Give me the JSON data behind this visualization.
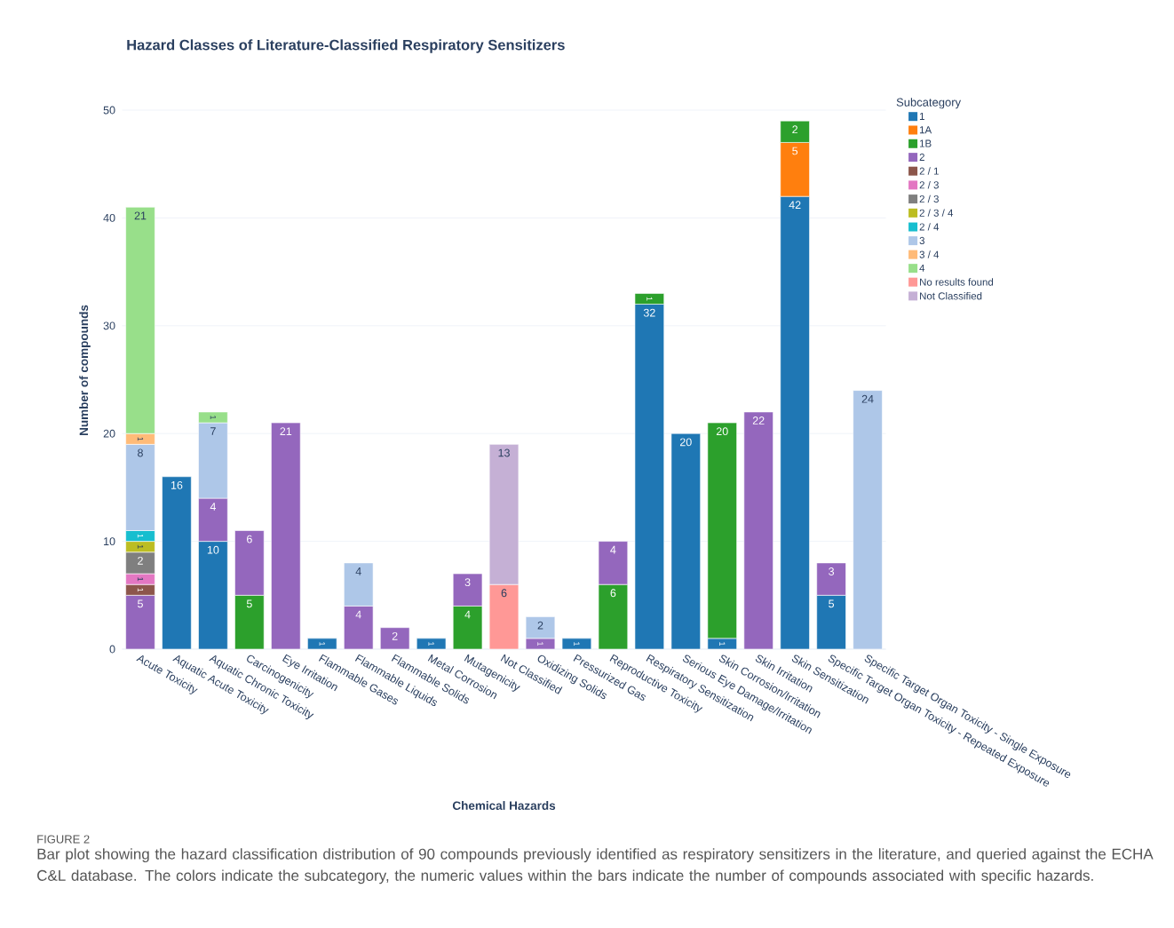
{
  "chart_data": {
    "type": "bar",
    "title": "Hazard Classes of Literature-Classified Respiratory Sensitizers",
    "xlabel": "Chemical Hazards",
    "ylabel": "Number of compounds",
    "legend_title": "Subcategory",
    "categories": [
      "Acute Toxicity",
      "Aquatic Acute Toxicity",
      "Aquatic Chronic Toxicity",
      "Carcinogenicity",
      "Eye Irritation",
      "Flammable Gases",
      "Flammable Liquids",
      "Flammable Solids",
      "Metal Corrosion",
      "Mutagenicity",
      "Not Classified",
      "Oxidizing Solids",
      "Pressurized Gas",
      "Reproductive Toxicity",
      "Respiratory Sensitization",
      "Serious Eye Damage/Irritation",
      "Skin Corrosion/Irritation",
      "Skin Irritation",
      "Skin Sensitization",
      "Specific Target Organ Toxicity - Repeated Exposure",
      "Specific Target Organ Toxicity - Single Exposure"
    ],
    "series": [
      {
        "name": "1",
        "color": "#1f77b4",
        "values": [
          null,
          16,
          10,
          null,
          null,
          1,
          null,
          null,
          1,
          null,
          null,
          null,
          1,
          null,
          32,
          20,
          1,
          null,
          42,
          5,
          null
        ]
      },
      {
        "name": "1A",
        "color": "#ff7f0e",
        "values": [
          null,
          null,
          null,
          null,
          null,
          null,
          null,
          null,
          null,
          null,
          null,
          null,
          null,
          null,
          null,
          null,
          null,
          null,
          5,
          null,
          null
        ]
      },
      {
        "name": "1B",
        "color": "#2ca02c",
        "values": [
          null,
          null,
          null,
          5,
          null,
          null,
          null,
          null,
          null,
          4,
          null,
          null,
          null,
          6,
          1,
          null,
          20,
          null,
          2,
          null,
          null
        ]
      },
      {
        "name": "2",
        "color": "#9467bd",
        "values": [
          5,
          null,
          4,
          6,
          21,
          null,
          4,
          2,
          null,
          3,
          null,
          1,
          null,
          4,
          null,
          null,
          null,
          22,
          null,
          3,
          null
        ]
      },
      {
        "name": "2 / 1",
        "color": "#8c564b",
        "values": [
          1,
          null,
          null,
          null,
          null,
          null,
          null,
          null,
          null,
          null,
          null,
          null,
          null,
          null,
          null,
          null,
          null,
          null,
          null,
          null,
          null
        ]
      },
      {
        "name": "2 / 3",
        "color": "#e377c2",
        "values": [
          1,
          null,
          null,
          null,
          null,
          null,
          null,
          null,
          null,
          null,
          null,
          null,
          null,
          null,
          null,
          null,
          null,
          null,
          null,
          null,
          null
        ]
      },
      {
        "name": "2 / 3",
        "color": "#7f7f7f",
        "values": [
          2,
          null,
          null,
          null,
          null,
          null,
          null,
          null,
          null,
          null,
          null,
          null,
          null,
          null,
          null,
          null,
          null,
          null,
          null,
          null,
          null
        ]
      },
      {
        "name": "2 / 3 / 4",
        "color": "#bcbd22",
        "values": [
          1,
          null,
          null,
          null,
          null,
          null,
          null,
          null,
          null,
          null,
          null,
          null,
          null,
          null,
          null,
          null,
          null,
          null,
          null,
          null,
          null
        ]
      },
      {
        "name": "2 / 4",
        "color": "#17becf",
        "values": [
          1,
          null,
          null,
          null,
          null,
          null,
          null,
          null,
          null,
          null,
          null,
          null,
          null,
          null,
          null,
          null,
          null,
          null,
          null,
          null,
          null
        ]
      },
      {
        "name": "3",
        "color": "#aec7e8",
        "values": [
          8,
          null,
          7,
          null,
          null,
          null,
          4,
          null,
          null,
          null,
          null,
          2,
          null,
          null,
          null,
          null,
          null,
          null,
          null,
          null,
          24
        ]
      },
      {
        "name": "3 / 4",
        "color": "#ffbb78",
        "values": [
          1,
          null,
          null,
          null,
          null,
          null,
          null,
          null,
          null,
          null,
          null,
          null,
          null,
          null,
          null,
          null,
          null,
          null,
          null,
          null,
          null
        ]
      },
      {
        "name": "4",
        "color": "#98df8a",
        "values": [
          21,
          null,
          1,
          null,
          null,
          null,
          null,
          null,
          null,
          null,
          null,
          null,
          null,
          null,
          null,
          null,
          null,
          null,
          null,
          null,
          null
        ]
      },
      {
        "name": "No results found",
        "color": "#ff9896",
        "values": [
          null,
          null,
          null,
          null,
          null,
          null,
          null,
          null,
          null,
          null,
          6,
          null,
          null,
          null,
          null,
          null,
          null,
          null,
          null,
          null,
          null
        ]
      },
      {
        "name": "Not Classified",
        "color": "#c5b0d5",
        "values": [
          null,
          null,
          null,
          null,
          null,
          null,
          null,
          null,
          null,
          null,
          13,
          null,
          null,
          null,
          null,
          null,
          null,
          null,
          null,
          null,
          null
        ]
      }
    ],
    "stacked": true,
    "data_labels": true,
    "ylim": [
      0,
      50
    ],
    "yticks": [
      0,
      10,
      20,
      30,
      40,
      50
    ],
    "grid": "y",
    "legend": "top right",
    "annotations": [
      "FIGURE 2",
      "Bar plot showing the hazard classification distribution of 90 compounds previously identified as respiratory sensitizers in the literature, and queried against the ECHA C&L database. The colors indicate the subcategory, the numeric values within the bars indicate the number of compounds associated with specific hazards."
    ]
  }
}
